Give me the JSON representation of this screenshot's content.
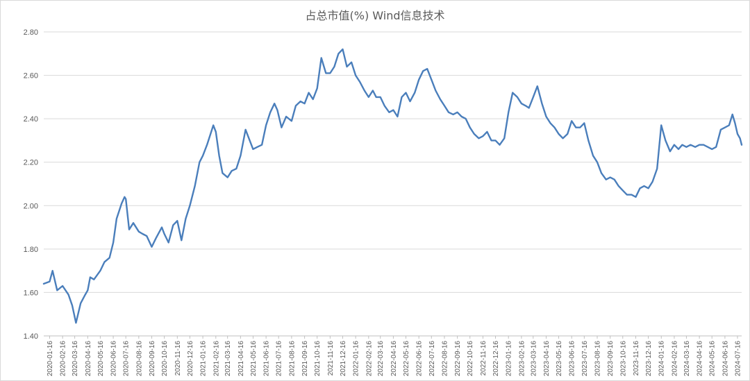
{
  "chart_data": {
    "type": "line",
    "title": "占总市值(%) Wind信息技术",
    "xlabel": "",
    "ylabel": "",
    "ylim": [
      1.4,
      2.8
    ],
    "y_ticks": [
      "2.80",
      "2.60",
      "2.40",
      "2.20",
      "2.00",
      "1.80",
      "1.60",
      "1.40"
    ],
    "y_tick_values": [
      2.8,
      2.6,
      2.4,
      2.2,
      2.0,
      1.8,
      1.6,
      1.4
    ],
    "x_ticks": [
      "2020-01-16",
      "2020-02-16",
      "2020-03-16",
      "2020-04-16",
      "2020-05-16",
      "2020-06-16",
      "2020-07-16",
      "2020-08-16",
      "2020-09-16",
      "2020-10-16",
      "2020-11-16",
      "2020-12-16",
      "2021-01-16",
      "2021-02-16",
      "2021-03-16",
      "2021-04-16",
      "2021-05-16",
      "2021-06-16",
      "2021-07-16",
      "2021-08-16",
      "2021-09-16",
      "2021-10-16",
      "2021-11-16",
      "2021-12-16",
      "2022-01-16",
      "2022-02-16",
      "2022-03-16",
      "2022-04-16",
      "2022-05-16",
      "2022-06-16",
      "2022-07-16",
      "2022-08-16",
      "2022-09-16",
      "2022-10-16",
      "2022-11-16",
      "2022-12-16",
      "2023-01-16",
      "2023-02-16",
      "2023-03-16",
      "2023-04-16",
      "2023-05-16",
      "2023-06-16",
      "2023-07-16",
      "2023-08-16",
      "2023-09-16",
      "2023-10-16",
      "2023-11-16",
      "2023-12-16",
      "2024-01-16",
      "2024-02-16",
      "2024-03-16",
      "2024-04-16",
      "2024-05-16",
      "2024-06-16",
      "2024-07-16"
    ],
    "grid": true,
    "legend": "none",
    "line_color": "#4a7ebb",
    "series": [
      {
        "points": [
          [
            "2020-01-02",
            1.64
          ],
          [
            "2020-01-16",
            1.65
          ],
          [
            "2020-01-23",
            1.7
          ],
          [
            "2020-02-03",
            1.61
          ],
          [
            "2020-02-16",
            1.63
          ],
          [
            "2020-03-01",
            1.59
          ],
          [
            "2020-03-10",
            1.54
          ],
          [
            "2020-03-19",
            1.46
          ],
          [
            "2020-03-30",
            1.55
          ],
          [
            "2020-04-10",
            1.59
          ],
          [
            "2020-04-16",
            1.61
          ],
          [
            "2020-04-22",
            1.67
          ],
          [
            "2020-05-01",
            1.66
          ],
          [
            "2020-05-16",
            1.7
          ],
          [
            "2020-05-26",
            1.74
          ],
          [
            "2020-06-07",
            1.76
          ],
          [
            "2020-06-16",
            1.83
          ],
          [
            "2020-06-24",
            1.94
          ],
          [
            "2020-07-06",
            2.01
          ],
          [
            "2020-07-13",
            2.04
          ],
          [
            "2020-07-16",
            2.03
          ],
          [
            "2020-07-24",
            1.89
          ],
          [
            "2020-08-03",
            1.92
          ],
          [
            "2020-08-16",
            1.88
          ],
          [
            "2020-08-25",
            1.87
          ],
          [
            "2020-09-04",
            1.86
          ],
          [
            "2020-09-16",
            1.81
          ],
          [
            "2020-09-26",
            1.85
          ],
          [
            "2020-10-10",
            1.9
          ],
          [
            "2020-10-16",
            1.87
          ],
          [
            "2020-10-26",
            1.83
          ],
          [
            "2020-11-06",
            1.91
          ],
          [
            "2020-11-16",
            1.93
          ],
          [
            "2020-11-26",
            1.84
          ],
          [
            "2020-12-06",
            1.94
          ],
          [
            "2020-12-16",
            2.0
          ],
          [
            "2020-12-28",
            2.09
          ],
          [
            "2021-01-08",
            2.2
          ],
          [
            "2021-01-16",
            2.23
          ],
          [
            "2021-01-26",
            2.28
          ],
          [
            "2021-02-10",
            2.37
          ],
          [
            "2021-02-16",
            2.34
          ],
          [
            "2021-02-24",
            2.23
          ],
          [
            "2021-03-04",
            2.15
          ],
          [
            "2021-03-16",
            2.13
          ],
          [
            "2021-03-26",
            2.16
          ],
          [
            "2021-04-06",
            2.17
          ],
          [
            "2021-04-16",
            2.23
          ],
          [
            "2021-04-28",
            2.35
          ],
          [
            "2021-05-08",
            2.3
          ],
          [
            "2021-05-16",
            2.26
          ],
          [
            "2021-05-26",
            2.27
          ],
          [
            "2021-06-06",
            2.28
          ],
          [
            "2021-06-16",
            2.37
          ],
          [
            "2021-06-26",
            2.43
          ],
          [
            "2021-07-06",
            2.47
          ],
          [
            "2021-07-13",
            2.44
          ],
          [
            "2021-07-23",
            2.36
          ],
          [
            "2021-08-03",
            2.41
          ],
          [
            "2021-08-16",
            2.39
          ],
          [
            "2021-08-26",
            2.46
          ],
          [
            "2021-09-06",
            2.48
          ],
          [
            "2021-09-16",
            2.47
          ],
          [
            "2021-09-26",
            2.52
          ],
          [
            "2021-10-06",
            2.49
          ],
          [
            "2021-10-16",
            2.54
          ],
          [
            "2021-10-26",
            2.68
          ],
          [
            "2021-11-06",
            2.61
          ],
          [
            "2021-11-16",
            2.61
          ],
          [
            "2021-11-26",
            2.64
          ],
          [
            "2021-12-06",
            2.7
          ],
          [
            "2021-12-16",
            2.72
          ],
          [
            "2021-12-26",
            2.64
          ],
          [
            "2022-01-06",
            2.66
          ],
          [
            "2022-01-16",
            2.6
          ],
          [
            "2022-01-26",
            2.57
          ],
          [
            "2022-02-06",
            2.53
          ],
          [
            "2022-02-16",
            2.5
          ],
          [
            "2022-02-26",
            2.53
          ],
          [
            "2022-03-06",
            2.5
          ],
          [
            "2022-03-16",
            2.5
          ],
          [
            "2022-03-26",
            2.46
          ],
          [
            "2022-04-06",
            2.43
          ],
          [
            "2022-04-16",
            2.44
          ],
          [
            "2022-04-26",
            2.41
          ],
          [
            "2022-05-06",
            2.5
          ],
          [
            "2022-05-16",
            2.52
          ],
          [
            "2022-05-26",
            2.48
          ],
          [
            "2022-06-06",
            2.52
          ],
          [
            "2022-06-16",
            2.58
          ],
          [
            "2022-06-26",
            2.62
          ],
          [
            "2022-07-06",
            2.63
          ],
          [
            "2022-07-16",
            2.58
          ],
          [
            "2022-07-26",
            2.53
          ],
          [
            "2022-08-06",
            2.49
          ],
          [
            "2022-08-16",
            2.46
          ],
          [
            "2022-08-26",
            2.43
          ],
          [
            "2022-09-06",
            2.42
          ],
          [
            "2022-09-16",
            2.43
          ],
          [
            "2022-09-26",
            2.41
          ],
          [
            "2022-10-06",
            2.4
          ],
          [
            "2022-10-16",
            2.36
          ],
          [
            "2022-10-26",
            2.33
          ],
          [
            "2022-11-06",
            2.31
          ],
          [
            "2022-11-16",
            2.32
          ],
          [
            "2022-11-26",
            2.34
          ],
          [
            "2022-12-06",
            2.3
          ],
          [
            "2022-12-16",
            2.3
          ],
          [
            "2022-12-26",
            2.28
          ],
          [
            "2023-01-06",
            2.31
          ],
          [
            "2023-01-16",
            2.43
          ],
          [
            "2023-01-26",
            2.52
          ],
          [
            "2023-02-06",
            2.5
          ],
          [
            "2023-02-16",
            2.47
          ],
          [
            "2023-02-26",
            2.46
          ],
          [
            "2023-03-06",
            2.45
          ],
          [
            "2023-03-16",
            2.5
          ],
          [
            "2023-03-26",
            2.55
          ],
          [
            "2023-04-06",
            2.47
          ],
          [
            "2023-04-16",
            2.41
          ],
          [
            "2023-04-26",
            2.38
          ],
          [
            "2023-05-06",
            2.36
          ],
          [
            "2023-05-16",
            2.33
          ],
          [
            "2023-05-26",
            2.31
          ],
          [
            "2023-06-06",
            2.33
          ],
          [
            "2023-06-16",
            2.39
          ],
          [
            "2023-06-26",
            2.36
          ],
          [
            "2023-07-06",
            2.36
          ],
          [
            "2023-07-16",
            2.38
          ],
          [
            "2023-07-26",
            2.3
          ],
          [
            "2023-08-06",
            2.23
          ],
          [
            "2023-08-16",
            2.2
          ],
          [
            "2023-08-26",
            2.15
          ],
          [
            "2023-09-06",
            2.12
          ],
          [
            "2023-09-16",
            2.13
          ],
          [
            "2023-09-26",
            2.12
          ],
          [
            "2023-10-06",
            2.09
          ],
          [
            "2023-10-16",
            2.07
          ],
          [
            "2023-10-26",
            2.05
          ],
          [
            "2023-11-06",
            2.05
          ],
          [
            "2023-11-16",
            2.04
          ],
          [
            "2023-11-26",
            2.08
          ],
          [
            "2023-12-06",
            2.09
          ],
          [
            "2023-12-16",
            2.08
          ],
          [
            "2023-12-26",
            2.11
          ],
          [
            "2024-01-06",
            2.17
          ],
          [
            "2024-01-16",
            2.37
          ],
          [
            "2024-01-26",
            2.3
          ],
          [
            "2024-02-06",
            2.25
          ],
          [
            "2024-02-16",
            2.28
          ],
          [
            "2024-02-26",
            2.26
          ],
          [
            "2024-03-06",
            2.28
          ],
          [
            "2024-03-16",
            2.27
          ],
          [
            "2024-03-26",
            2.28
          ],
          [
            "2024-04-06",
            2.27
          ],
          [
            "2024-04-16",
            2.28
          ],
          [
            "2024-04-26",
            2.28
          ],
          [
            "2024-05-06",
            2.27
          ],
          [
            "2024-05-16",
            2.26
          ],
          [
            "2024-05-26",
            2.27
          ],
          [
            "2024-06-06",
            2.35
          ],
          [
            "2024-06-16",
            2.36
          ],
          [
            "2024-06-26",
            2.37
          ],
          [
            "2024-07-04",
            2.42
          ],
          [
            "2024-07-10",
            2.38
          ],
          [
            "2024-07-16",
            2.33
          ],
          [
            "2024-07-22",
            2.31
          ],
          [
            "2024-07-26",
            2.28
          ]
        ]
      }
    ]
  }
}
